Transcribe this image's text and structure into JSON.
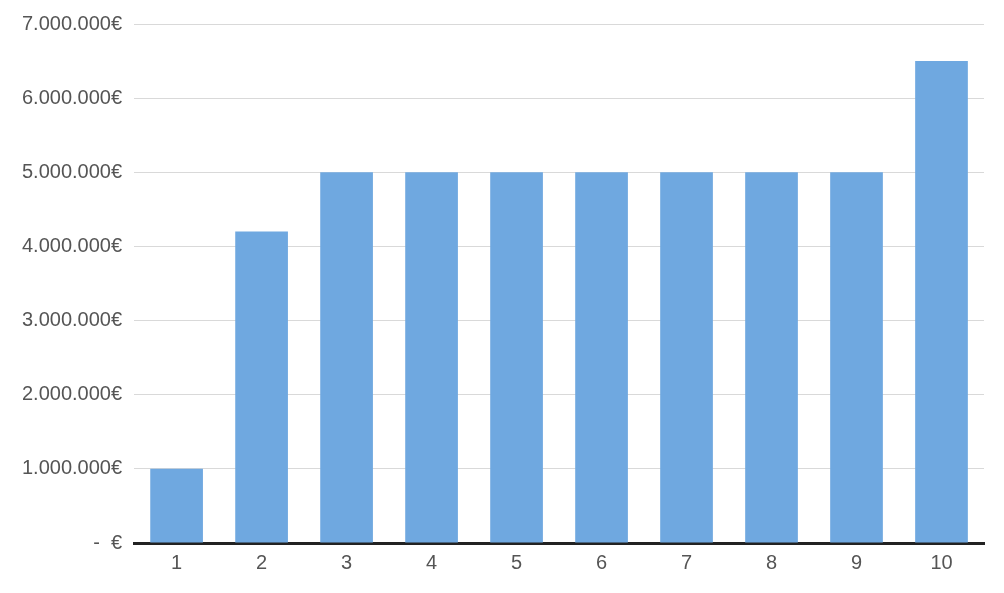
{
  "chart_data": {
    "type": "bar",
    "categories": [
      "1",
      "2",
      "3",
      "4",
      "5",
      "6",
      "7",
      "8",
      "9",
      "10"
    ],
    "values": [
      1000000,
      4200000,
      5000000,
      5000000,
      5000000,
      5000000,
      5000000,
      5000000,
      5000000,
      6500000
    ],
    "color": "#6fa8e0",
    "ylim": [
      0,
      7000000
    ],
    "yticks": [
      {
        "value": 0,
        "label": "-  €"
      },
      {
        "value": 1000000,
        "label": "1.000.000€"
      },
      {
        "value": 2000000,
        "label": "2.000.000€"
      },
      {
        "value": 3000000,
        "label": "3.000.000€"
      },
      {
        "value": 4000000,
        "label": "4.000.000€"
      },
      {
        "value": 5000000,
        "label": "5.000.000€"
      },
      {
        "value": 6000000,
        "label": "6.000.000€"
      },
      {
        "value": 7000000,
        "label": "7.000.000€"
      }
    ],
    "grid": "y"
  }
}
